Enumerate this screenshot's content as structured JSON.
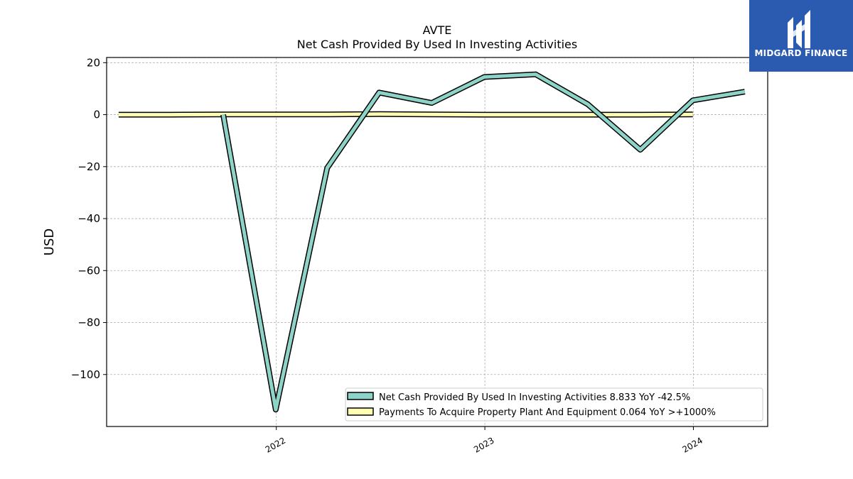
{
  "chart_data": {
    "type": "line",
    "title": "AVTE",
    "subtitle": "Net Cash Provided By Used In Investing Activities",
    "ylabel": "USD",
    "ylim": [
      -120,
      22
    ],
    "yticks": [
      20,
      0,
      -20,
      -40,
      -60,
      -80,
      -100
    ],
    "ytick_labels": [
      "20",
      "0",
      "−20",
      "−40",
      "−60",
      "−80",
      "−100"
    ],
    "xlim": [
      "2021-03-10",
      "2024-05-10"
    ],
    "xticks": [
      "2022-01-01",
      "2023-01-01",
      "2024-01-01"
    ],
    "xtick_labels": [
      "2022",
      "2023",
      "2024"
    ],
    "grid": true,
    "legend_position": "lower-right",
    "series": [
      {
        "name": "Net Cash Provided By Used In Investing Activities",
        "legend": "Net Cash Provided By Used In Investing Activities  8.833 YoY -42.5%",
        "color": "#8dd3c7",
        "x": [
          "2021-09-30",
          "2021-12-31",
          "2022-03-31",
          "2022-06-30",
          "2022-09-30",
          "2022-12-31",
          "2023-03-31",
          "2023-06-30",
          "2023-09-30",
          "2023-12-31",
          "2024-03-31"
        ],
        "values": [
          0.0,
          -113.5,
          -20.5,
          8.5,
          4.5,
          14.5,
          15.5,
          4.0,
          -13.5,
          5.5,
          8.833
        ]
      },
      {
        "name": "Payments To Acquire Property Plant And Equipment",
        "legend": "Payments To Acquire Property Plant And Equipment  0.064 YoY >+1000%",
        "color": "#ffffb3",
        "x": [
          "2021-03-31",
          "2021-06-30",
          "2021-09-30",
          "2021-12-31",
          "2022-03-31",
          "2022-06-30",
          "2022-09-30",
          "2022-12-31",
          "2023-03-31",
          "2023-06-30",
          "2023-09-30",
          "2023-12-31"
        ],
        "values": [
          0.0,
          0.0,
          0.1,
          0.1,
          0.1,
          0.2,
          0.1,
          0.0,
          0.0,
          0.0,
          0.0,
          0.064
        ]
      }
    ]
  },
  "logo": {
    "text": "MIDGARD FINANCE"
  }
}
